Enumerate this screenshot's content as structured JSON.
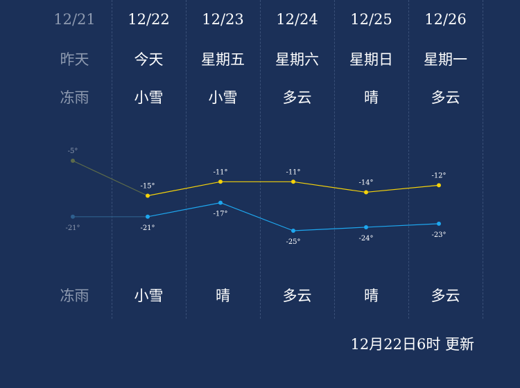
{
  "days": [
    {
      "date": "12/21",
      "week": "昨天",
      "day_condition": "冻雨",
      "night_condition": "冻雨",
      "past": true
    },
    {
      "date": "12/22",
      "week": "今天",
      "day_condition": "小雪",
      "night_condition": "小雪",
      "past": false
    },
    {
      "date": "12/23",
      "week": "星期五",
      "day_condition": "小雪",
      "night_condition": "晴",
      "past": false
    },
    {
      "date": "12/24",
      "week": "星期六",
      "day_condition": "多云",
      "night_condition": "多云",
      "past": false
    },
    {
      "date": "12/25",
      "week": "星期日",
      "day_condition": "晴",
      "night_condition": "晴",
      "past": false
    },
    {
      "date": "12/26",
      "week": "星期一",
      "day_condition": "多云",
      "night_condition": "多云",
      "past": false
    }
  ],
  "chart_data": {
    "type": "line",
    "categories": [
      "12/21",
      "12/22",
      "12/23",
      "12/24",
      "12/25",
      "12/26"
    ],
    "unit": "°",
    "series": [
      {
        "key": "high",
        "values": [
          -5,
          -15,
          -11,
          -11,
          -14,
          -12
        ],
        "color": "#f5d20a",
        "past_color": "#5d6b4a"
      },
      {
        "key": "low",
        "values": [
          -21,
          -21,
          -17,
          -25,
          -24,
          -23
        ],
        "color": "#1ea7ef",
        "past_color": "#2e5f8e"
      }
    ]
  },
  "updated_text": "12月22日6时 更新",
  "colors": {
    "background": "#1b3058",
    "past_text": "#8e9ab0",
    "text": "#ffffff"
  }
}
